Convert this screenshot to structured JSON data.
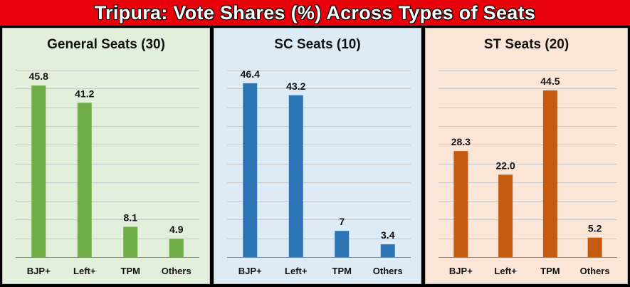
{
  "header": {
    "title": "Tripura: Vote Shares (%) Across Types of Seats"
  },
  "colors": {
    "title_bg": "#e8000b",
    "general_bar": "#70ad47",
    "general_bg": "#e2efda",
    "sc_bar": "#2e75b6",
    "sc_bg": "#ddebf7",
    "st_bar": "#c55a11",
    "st_bg": "#fbe5d6"
  },
  "chart_data": [
    {
      "type": "bar",
      "title": "General Seats (30)",
      "categories": [
        "BJP+",
        "Left+",
        "TPM",
        "Others"
      ],
      "values": [
        45.8,
        41.2,
        8.1,
        4.9
      ],
      "labels": [
        "45.8",
        "41.2",
        "8.1",
        "4.9"
      ],
      "ylim": [
        0,
        50
      ],
      "gridlines": [
        5,
        10,
        15,
        20,
        25,
        30,
        35,
        40,
        45,
        50
      ],
      "bar_color": "#70ad47",
      "background": "#e2efda",
      "legend": "none"
    },
    {
      "type": "bar",
      "title": "SC Seats (10)",
      "categories": [
        "BJP+",
        "Left+",
        "TPM",
        "Others"
      ],
      "values": [
        46.4,
        43.2,
        7,
        3.4
      ],
      "labels": [
        "46.4",
        "43.2",
        "7",
        "3.4"
      ],
      "ylim": [
        0,
        50
      ],
      "gridlines": [
        5,
        10,
        15,
        20,
        25,
        30,
        35,
        40,
        45,
        50
      ],
      "bar_color": "#2e75b6",
      "background": "#ddebf7",
      "legend": "none"
    },
    {
      "type": "bar",
      "title": "ST Seats (20)",
      "categories": [
        "BJP+",
        "Left+",
        "TPM",
        "Others"
      ],
      "values": [
        28.3,
        22.0,
        44.5,
        5.2
      ],
      "labels": [
        "28.3",
        "22.0",
        "44.5",
        "5.2"
      ],
      "ylim": [
        0,
        50
      ],
      "gridlines": [
        5,
        10,
        15,
        20,
        25,
        30,
        35,
        40,
        45,
        50
      ],
      "bar_color": "#c55a11",
      "background": "#fbe5d6",
      "legend": "none"
    }
  ]
}
